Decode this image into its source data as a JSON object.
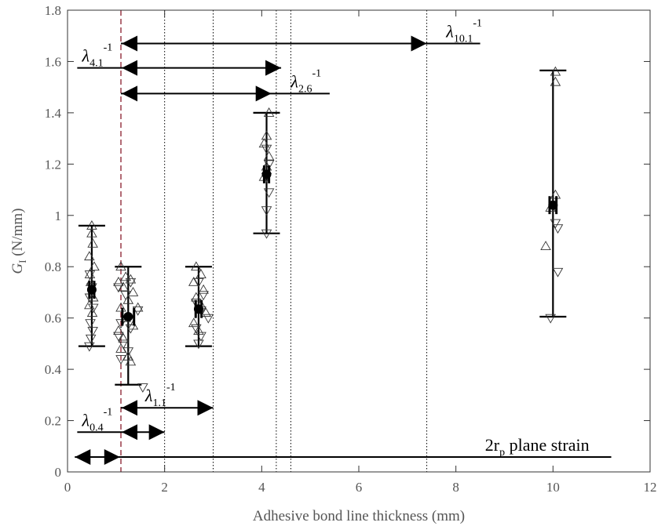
{
  "chart_data": {
    "type": "scatter",
    "xlabel": "Adhesive bond line thickness (mm)",
    "ylabel_main": "G",
    "ylabel_sub": "I",
    "ylabel_unit": " (N/mm)",
    "xlim": [
      0,
      12
    ],
    "ylim": [
      0,
      1.8
    ],
    "xticks": [
      0,
      2,
      4,
      6,
      8,
      10,
      12
    ],
    "yticks": [
      0,
      0.2,
      0.4,
      0.6,
      0.8,
      1.0,
      1.2,
      1.4,
      1.6,
      1.8
    ],
    "xtick_labels": [
      "0",
      "2",
      "4",
      "6",
      "8",
      "10",
      "12"
    ],
    "ytick_labels": [
      "0",
      "0.2",
      "0.4",
      "0.6",
      "0.8",
      "1",
      "1.2",
      "1.4",
      "1.6",
      "1.8"
    ],
    "grid": false,
    "groups": [
      {
        "x": 0.5,
        "mean": 0.71,
        "min": 0.49,
        "max": 0.96,
        "x_err": 0.05,
        "y_err": 0.035,
        "up_points": [
          [
            0.5,
            0.96
          ],
          [
            0.5,
            0.93
          ],
          [
            0.52,
            0.89
          ],
          [
            0.45,
            0.84
          ],
          [
            0.55,
            0.8
          ],
          [
            0.46,
            0.77
          ],
          [
            0.48,
            0.74
          ],
          [
            0.53,
            0.68
          ],
          [
            0.45,
            0.65
          ],
          [
            0.51,
            0.62
          ]
        ],
        "down_points": [
          [
            0.46,
            0.77
          ],
          [
            0.5,
            0.72
          ],
          [
            0.46,
            0.68
          ],
          [
            0.53,
            0.64
          ],
          [
            0.47,
            0.58
          ],
          [
            0.52,
            0.55
          ],
          [
            0.48,
            0.52
          ],
          [
            0.45,
            0.49
          ]
        ]
      },
      {
        "x": 1.25,
        "mean": 0.605,
        "min": 0.34,
        "max": 0.8,
        "x_err": 0.12,
        "y_err": 0.035,
        "up_points": [
          [
            1.1,
            0.8
          ],
          [
            1.2,
            0.76
          ],
          [
            1.3,
            0.75
          ],
          [
            1.05,
            0.74
          ],
          [
            1.15,
            0.72
          ],
          [
            1.35,
            0.7
          ],
          [
            1.25,
            0.67
          ],
          [
            1.45,
            0.64
          ],
          [
            1.1,
            0.64
          ],
          [
            1.2,
            0.6
          ],
          [
            1.35,
            0.57
          ],
          [
            1.05,
            0.55
          ],
          [
            1.15,
            0.52
          ],
          [
            1.1,
            0.48
          ],
          [
            1.25,
            0.45
          ],
          [
            1.3,
            0.43
          ]
        ],
        "down_points": [
          [
            1.3,
            0.74
          ],
          [
            1.05,
            0.72
          ],
          [
            1.2,
            0.69
          ],
          [
            1.45,
            0.63
          ],
          [
            1.1,
            0.58
          ],
          [
            1.3,
            0.56
          ],
          [
            1.05,
            0.53
          ],
          [
            1.15,
            0.5
          ],
          [
            1.25,
            0.47
          ],
          [
            1.1,
            0.44
          ],
          [
            1.55,
            0.33
          ]
        ]
      },
      {
        "x": 2.7,
        "mean": 0.635,
        "min": 0.49,
        "max": 0.8,
        "x_err": 0.06,
        "y_err": 0.035,
        "up_points": [
          [
            2.65,
            0.8
          ],
          [
            2.75,
            0.77
          ],
          [
            2.6,
            0.74
          ],
          [
            2.8,
            0.71
          ],
          [
            2.65,
            0.68
          ],
          [
            2.75,
            0.65
          ],
          [
            2.85,
            0.62
          ],
          [
            2.6,
            0.58
          ],
          [
            2.7,
            0.55
          ]
        ],
        "down_points": [
          [
            2.7,
            0.74
          ],
          [
            2.8,
            0.69
          ],
          [
            2.65,
            0.66
          ],
          [
            2.75,
            0.63
          ],
          [
            2.9,
            0.6
          ],
          [
            2.65,
            0.56
          ],
          [
            2.75,
            0.53
          ],
          [
            2.7,
            0.5
          ]
        ]
      },
      {
        "x": 4.1,
        "mean": 1.16,
        "min": 0.93,
        "max": 1.4,
        "x_err": 0.05,
        "y_err": 0.035,
        "up_points": [
          [
            4.15,
            1.4
          ],
          [
            4.1,
            1.31
          ],
          [
            4.05,
            1.28
          ],
          [
            4.15,
            1.23
          ],
          [
            4.1,
            1.19
          ],
          [
            4.05,
            1.15
          ]
        ],
        "down_points": [
          [
            4.1,
            1.26
          ],
          [
            4.15,
            1.2
          ],
          [
            4.1,
            1.15
          ],
          [
            4.15,
            1.09
          ],
          [
            4.1,
            1.02
          ],
          [
            4.1,
            0.93
          ]
        ]
      },
      {
        "x": 10.0,
        "mean": 1.04,
        "min": 0.605,
        "max": 1.565,
        "x_err": 0.07,
        "y_err": 0.035,
        "up_points": [
          [
            10.05,
            1.56
          ],
          [
            10.05,
            1.52
          ],
          [
            10.05,
            1.08
          ],
          [
            9.95,
            1.03
          ],
          [
            9.85,
            0.88
          ]
        ],
        "down_points": [
          [
            10.05,
            0.97
          ],
          [
            10.1,
            0.95
          ],
          [
            10.1,
            0.78
          ],
          [
            9.95,
            0.6
          ]
        ]
      }
    ],
    "red_dashed_x": 1.1,
    "dotted_lines_x": [
      2.0,
      3.0,
      4.3,
      4.6,
      7.4
    ],
    "annotations": [
      {
        "id": "lambda-10-1",
        "main": "λ",
        "sub": "10.1",
        "sup": "-1",
        "x": 1.1,
        "x_end": 7.4,
        "y": 1.67,
        "line_end": 8.5,
        "style": "double",
        "label_x": 7.8
      },
      {
        "id": "lambda-4-1",
        "main": "λ",
        "sub": "4.1",
        "sup": "-1",
        "x": 1.1,
        "x_end": 4.4,
        "y": 1.575,
        "line_start": 0.2,
        "style": "double",
        "label_x": 0.3
      },
      {
        "id": "lambda-2-6",
        "main": "λ",
        "sub": "2.6",
        "sup": "-1",
        "x": 1.1,
        "x_end": 4.2,
        "y": 1.475,
        "line_end": 5.4,
        "style": "double",
        "label_x": 4.6
      },
      {
        "id": "lambda-1-1",
        "main": "λ",
        "sub": "1.1",
        "sup": "-1",
        "x": 1.1,
        "x_end": 3.0,
        "y": 0.25,
        "style": "double",
        "label_x": 1.6
      },
      {
        "id": "lambda-0-4",
        "main": "λ",
        "sub": "0.4",
        "sup": "-1",
        "x": 1.1,
        "x_end": 2.0,
        "y": 0.155,
        "line_start": 0.2,
        "style": "double",
        "label_x": 0.3
      },
      {
        "id": "two-rp",
        "main": "2r",
        "sub": "p",
        "sup": "",
        "text_after": " plane strain",
        "x": 0.15,
        "x_end": 1.1,
        "y": 0.058,
        "line_end": 11.2,
        "style": "double",
        "label_x": 8.6
      }
    ]
  }
}
